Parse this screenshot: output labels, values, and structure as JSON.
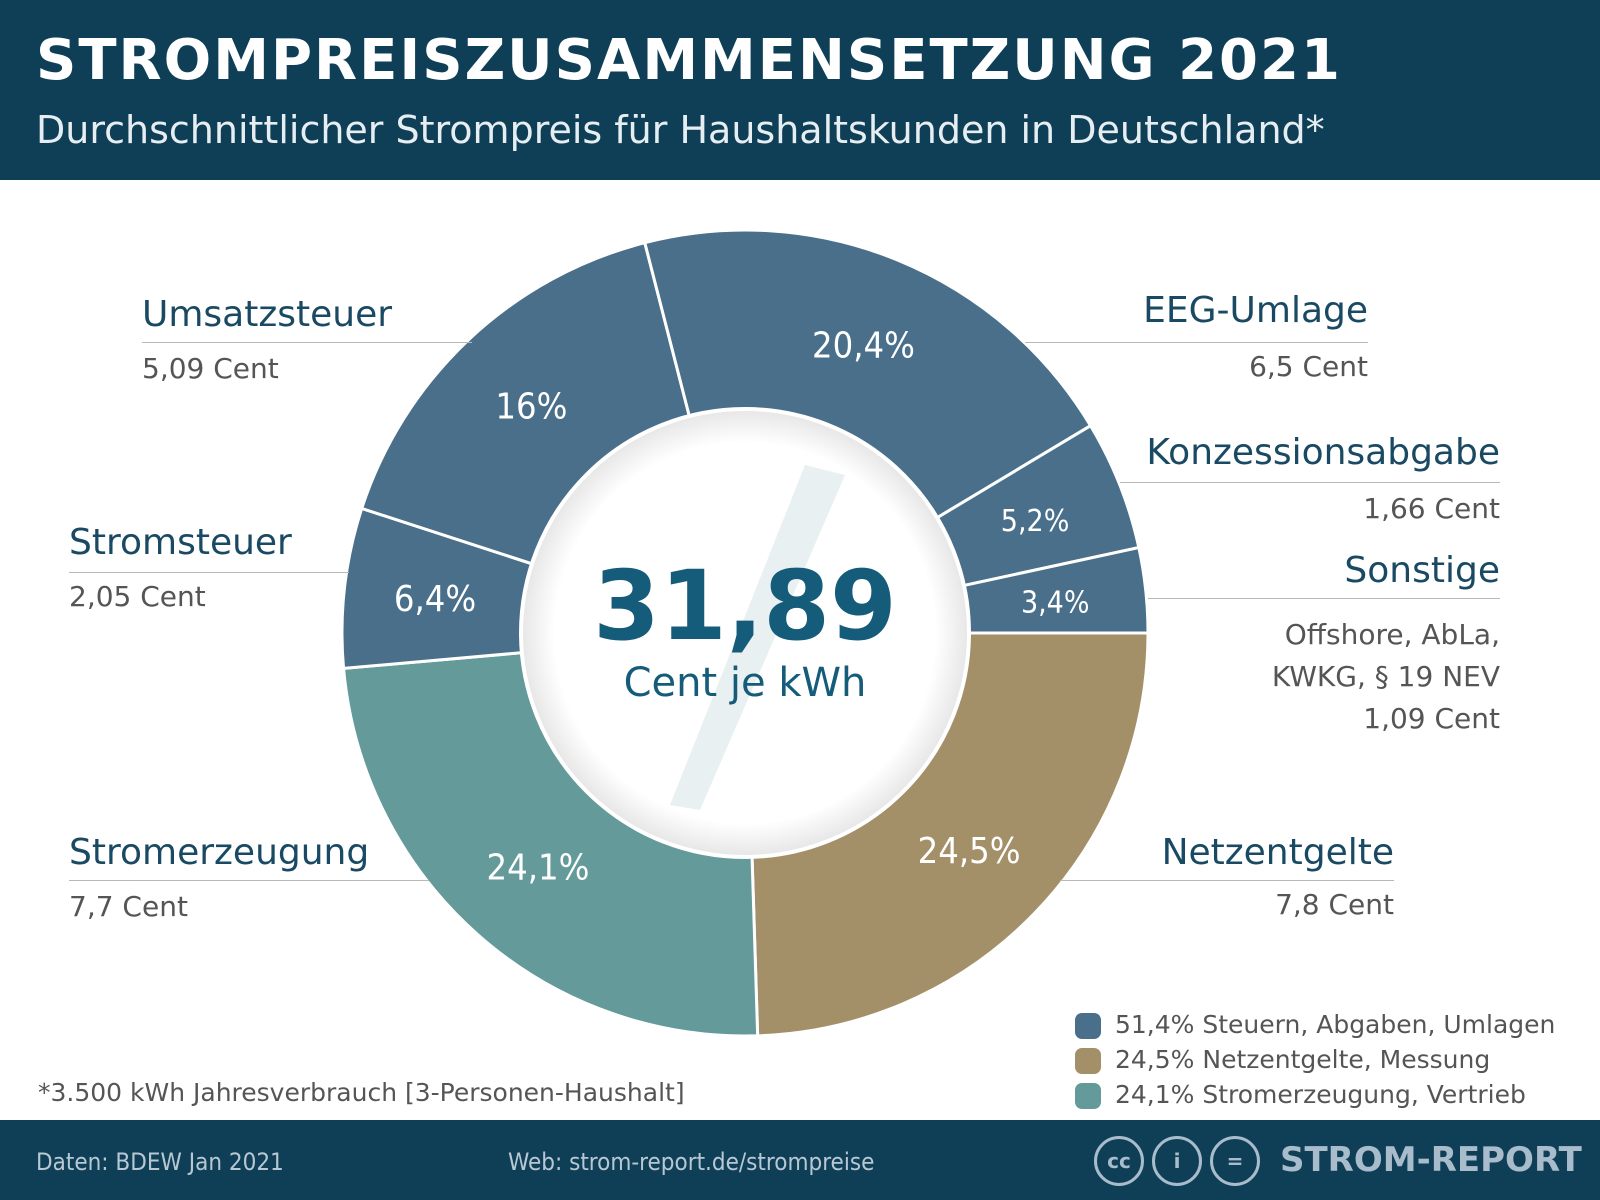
{
  "header": {
    "title": "STROMPREISZUSAMMENSETZUNG 2021",
    "subtitle": "Durchschnittlicher Strompreis für Haushaltskunden in Deutschland*"
  },
  "chart_data": {
    "type": "pie",
    "donut": true,
    "center_value": "31,89",
    "center_unit": "Cent je kWh",
    "slices": [
      {
        "name": "Netzentgelte",
        "percent": 24.5,
        "percent_label": "24,5%",
        "value_label": "7,8 Cent",
        "color": "#a39068"
      },
      {
        "name": "Stromerzeugung",
        "percent": 24.1,
        "percent_label": "24,1%",
        "value_label": "7,7 Cent",
        "color": "#649a9a"
      },
      {
        "name": "Stromsteuer",
        "percent": 6.4,
        "percent_label": "6,4%",
        "value_label": "2,05 Cent",
        "color": "#4a6f8a"
      },
      {
        "name": "Umsatzsteuer",
        "percent": 16,
        "percent_label": "16%",
        "value_label": "5,09 Cent",
        "color": "#4a6f8a"
      },
      {
        "name": "EEG-Umlage",
        "percent": 20.4,
        "percent_label": "20,4%",
        "value_label": "6,5 Cent",
        "color": "#4a6f8a"
      },
      {
        "name": "Konzessionsabgabe",
        "percent": 5.2,
        "percent_label": "5,2%",
        "value_label": "1,66 Cent",
        "color": "#4a6f8a"
      },
      {
        "name": "Sonstige",
        "percent": 3.4,
        "percent_label": "3,4%",
        "value_label": "Offshore, AbLa,\nKWKG, § 19 NEV\n1,09 Cent",
        "color": "#4a6f8a"
      }
    ],
    "legend": [
      {
        "label": "51,4% Steuern, Abgaben, Umlagen",
        "color": "#4a6f8a"
      },
      {
        "label": "24,5% Netzentgelte, Messung",
        "color": "#a39068"
      },
      {
        "label": "24,1% Stromerzeugung, Vertrieb",
        "color": "#649a9a"
      }
    ],
    "legend_position": "bottom-right"
  },
  "note": "*3.500 kWh Jahresverbrauch [3-Personen-Haushalt]",
  "footer": {
    "source": "Daten: BDEW Jan 2021",
    "web": "Web: strom-report.de/strompreise",
    "brand": "STROM-REPORT",
    "license_icons": [
      "cc-icon",
      "by-icon",
      "nd-icon"
    ]
  },
  "colors": {
    "header": "#0f3f57",
    "accent": "#155b7a"
  }
}
